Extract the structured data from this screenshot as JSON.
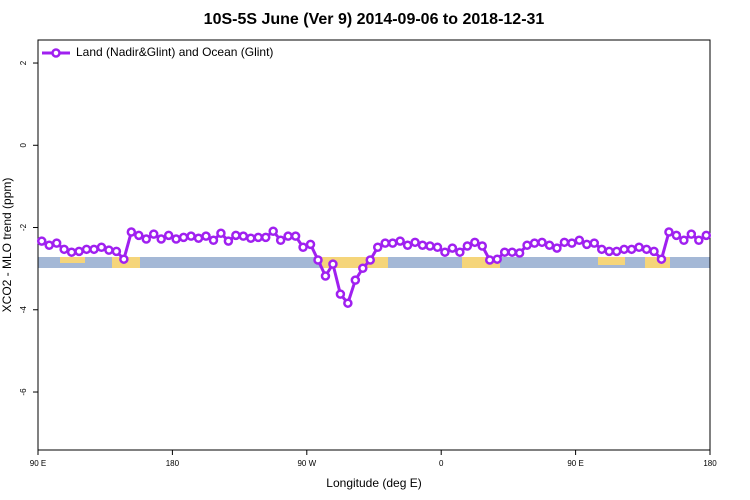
{
  "chart_data": {
    "type": "line",
    "title": "10S-5S June (Ver 9)   2014-09-06 to 2018-12-31",
    "x_label": "Longitude (deg E)",
    "y_label": "XCO2 - MLO trend (ppm)",
    "x": [
      92.5,
      97.5,
      102.5,
      107.5,
      112.5,
      117.5,
      122.5,
      127.5,
      132.5,
      137.5,
      142.5,
      147.5,
      152.5,
      157.5,
      162.5,
      167.5,
      172.5,
      177.5,
      182.5,
      187.5,
      192.5,
      197.5,
      202.5,
      207.5,
      212.5,
      217.5,
      222.5,
      227.5,
      232.5,
      237.5,
      242.5,
      247.5,
      252.5,
      257.5,
      262.5,
      267.5,
      272.5,
      277.5,
      282.5,
      287.5,
      292.5,
      297.5,
      302.5,
      307.5,
      312.5,
      317.5,
      322.5,
      327.5,
      332.5,
      337.5,
      342.5,
      347.5,
      352.5,
      357.5,
      362.5,
      367.5,
      372.5,
      377.5,
      382.5,
      387.5,
      392.5,
      397.5,
      402.5,
      407.5,
      412.5,
      417.5,
      422.5,
      427.5,
      432.5,
      437.5,
      442.5,
      447.5,
      452.5,
      457.5,
      462.5,
      467.5,
      472.5,
      477.5,
      482.5,
      487.5,
      492.5,
      497.5,
      502.5,
      507.5,
      512.5,
      517.5,
      522.5,
      527.5,
      532.5,
      537.5
    ],
    "series": [
      {
        "name": "Land (Nadir&Glint) and Ocean (Glint)",
        "color": "#a020f0",
        "values": [
          -2.33,
          -2.43,
          -2.38,
          -2.53,
          -2.6,
          -2.58,
          -2.53,
          -2.53,
          -2.48,
          -2.55,
          -2.58,
          -2.77,
          -2.11,
          -2.19,
          -2.28,
          -2.16,
          -2.28,
          -2.19,
          -2.28,
          -2.24,
          -2.21,
          -2.26,
          -2.21,
          -2.31,
          -2.14,
          -2.33,
          -2.19,
          -2.21,
          -2.26,
          -2.24,
          -2.24,
          -2.09,
          -2.31,
          -2.21,
          -2.21,
          -2.48,
          -2.41,
          -2.79,
          -3.18,
          -2.89,
          -3.62,
          -3.84,
          -3.28,
          -2.99,
          -2.79,
          -2.48,
          -2.38,
          -2.38,
          -2.33,
          -2.43,
          -2.36,
          -2.43,
          -2.45,
          -2.48,
          -2.6,
          -2.5,
          -2.6,
          -2.45,
          -2.36,
          -2.45,
          -2.79,
          -2.77,
          -2.6,
          -2.6,
          -2.62,
          -2.43,
          -2.38,
          -2.36,
          -2.43,
          -2.5,
          -2.36,
          -2.38,
          -2.31,
          -2.41,
          -2.38,
          -2.53,
          -2.58,
          -2.58,
          -2.53,
          -2.53,
          -2.48,
          -2.53,
          -2.58,
          -2.77,
          -2.11,
          -2.19,
          -2.31,
          -2.16,
          -2.31,
          -2.19
        ]
      }
    ],
    "xlim": [
      90,
      540
    ],
    "xticks": [
      {
        "value": 90,
        "label": "90 E"
      },
      180,
      {
        "value": 270,
        "label": "90 W"
      },
      {
        "value": 360,
        "label": "0"
      },
      {
        "value": 450,
        "label": "90 E"
      },
      {
        "value": 540,
        "label": "180"
      }
    ],
    "ylim": [
      -7.41,
      2.56
    ],
    "yticks": [
      -6,
      -4,
      -2,
      0,
      2
    ],
    "legend": "top-left"
  }
}
